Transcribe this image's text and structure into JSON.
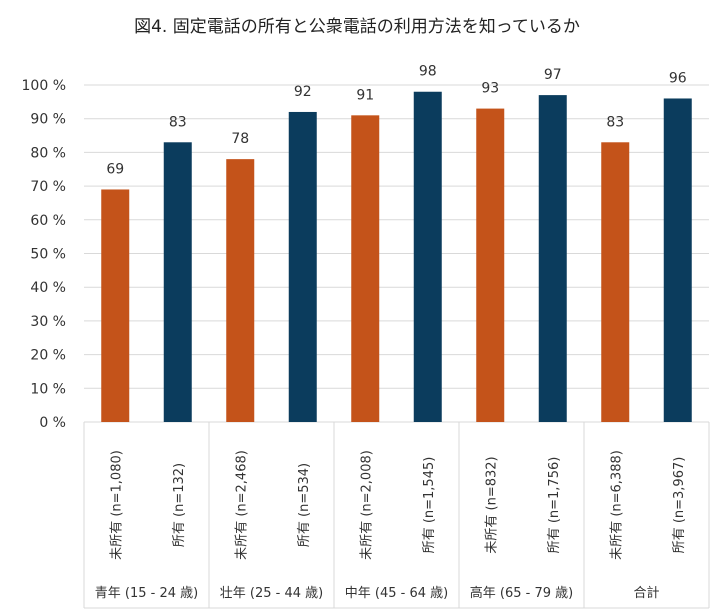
{
  "chart_data": {
    "type": "bar",
    "title": "図4. 固定電話の所有と公衆電話の利用方法を知っているか",
    "ylim": [
      0,
      100
    ],
    "yticks": [
      "0 %",
      "10 %",
      "20 %",
      "30 %",
      "40 %",
      "50 %",
      "60 %",
      "70 %",
      "80 %",
      "90 %",
      "100 %"
    ],
    "grid": true,
    "groups": [
      "青年 (15 - 24 歳)",
      "壮年 (25 - 44 歳)",
      "中年 (45 - 64 歳)",
      "高年 (65 - 79 歳)",
      "合計"
    ],
    "categories": [
      "未所有 (n=1,080)",
      "所有 (n=132)",
      "未所有 (n=2,468)",
      "所有 (n=534)",
      "未所有 (n=2,008)",
      "所有 (n=1,545)",
      "未所有 (n=832)",
      "所有 (n=1,756)",
      "未所有 (n=6,388)",
      "所有 (n=3,967)"
    ],
    "values": [
      69,
      83,
      78,
      92,
      91,
      98,
      93,
      97,
      83,
      96
    ],
    "colors": {
      "未所有": "#C4531A",
      "所有": "#0B3C5D"
    }
  }
}
